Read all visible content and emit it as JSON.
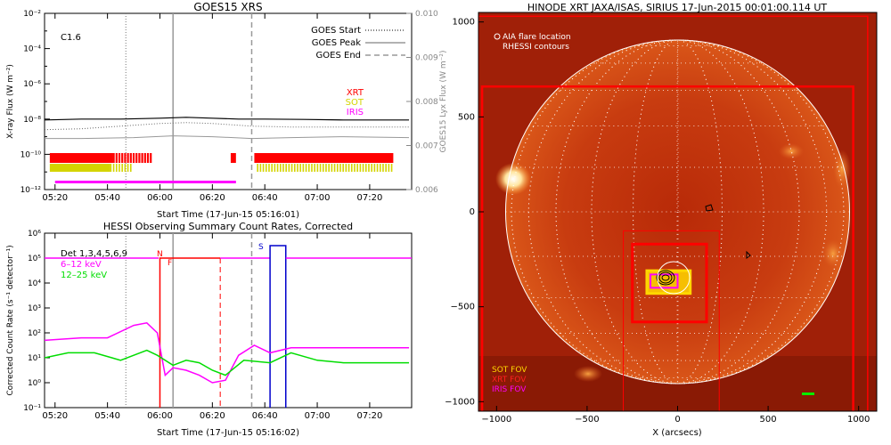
{
  "chart_data": [
    {
      "type": "line",
      "title": "GOES15 XRS",
      "xlabel": "Start Time (17-Jun-15 05:16:01)",
      "ylabel": "X-ray Flux (W m⁻²)",
      "y2label": "GOES15 Lyx Flux (W m⁻²)",
      "x_ticks": [
        "05:20",
        "05:40",
        "06:00",
        "06:20",
        "06:40",
        "07:00",
        "07:20"
      ],
      "y_ticks": [
        "10⁻¹²",
        "10⁻¹⁰",
        "10⁻⁸",
        "10⁻⁶",
        "10⁻⁴",
        "10⁻²"
      ],
      "y2_ticks": [
        "0.006",
        "0.007",
        "0.008",
        "0.009",
        "0.010"
      ],
      "ylim": [
        "1e-12",
        "1e-2"
      ],
      "y2lim": [
        0.006,
        0.01
      ],
      "scale": "log",
      "flare_class": "C1.6",
      "legend": [
        {
          "label": "GOES Start",
          "style": "dotted"
        },
        {
          "label": "GOES Peak",
          "style": "solid"
        },
        {
          "label": "GOES End",
          "style": "dashed"
        }
      ],
      "markers": {
        "start": "05:47",
        "peak": "06:05",
        "end": "06:35"
      },
      "series": [
        {
          "name": "1-8 Å (log10 flux)",
          "color": "#000000",
          "x": [
            "05:16",
            "05:30",
            "05:45",
            "06:00",
            "06:10",
            "06:20",
            "06:30",
            "06:40",
            "06:55",
            "07:10",
            "07:25",
            "07:35"
          ],
          "values": [
            -8.05,
            -8.0,
            -8.0,
            -7.95,
            -7.9,
            -7.95,
            -8.0,
            -8.0,
            -8.02,
            -8.05,
            -8.05,
            -8.05
          ]
        },
        {
          "name": "Lyman-alpha (dotted, log10 flux)",
          "color": "#666666",
          "x": [
            "05:16",
            "05:30",
            "05:45",
            "06:00",
            "06:10",
            "06:20",
            "06:35",
            "06:50",
            "07:05",
            "07:20",
            "07:35"
          ],
          "values": [
            -8.6,
            -8.55,
            -8.4,
            -8.25,
            -8.2,
            -8.25,
            -8.4,
            -8.45,
            -8.45,
            -8.45,
            -8.45
          ]
        },
        {
          "name": "0.5-4 Å (log10 flux)",
          "color": "#999999",
          "x": [
            "05:16",
            "05:30",
            "05:50",
            "06:05",
            "06:20",
            "06:35",
            "06:50",
            "07:10",
            "07:35"
          ],
          "values": [
            -9.1,
            -9.1,
            -9.05,
            -8.95,
            -9.0,
            -9.1,
            -9.05,
            -9.0,
            -9.05
          ]
        }
      ],
      "coverage_legend": [
        {
          "label": "XRT",
          "color": "#ff0000"
        },
        {
          "label": "SOT",
          "color": "#d4d400"
        },
        {
          "label": "IRIS",
          "color": "#ff00ff"
        }
      ],
      "coverage": [
        {
          "name": "XRT",
          "color": "#ff0000",
          "intervals": [
            [
              "05:18",
              "05:42"
            ],
            [
              "05:42",
              "05:57"
            ],
            [
              "06:27",
              "06:29"
            ],
            [
              "06:36",
              "07:29"
            ]
          ]
        },
        {
          "name": "SOT",
          "color": "#d4d400",
          "intervals": [
            [
              "05:18",
              "05:41"
            ],
            [
              "05:41",
              "05:49"
            ],
            [
              "06:37",
              "07:29"
            ]
          ]
        },
        {
          "name": "IRIS",
          "color": "#ff00ff",
          "intervals": [
            [
              "05:20",
              "06:29"
            ]
          ]
        }
      ]
    },
    {
      "type": "line",
      "title": "HESSI Observing Summary Count Rates, Corrected",
      "xlabel": "Start Time (17-Jun-15 05:16:02)",
      "ylabel": "Corrected Count Rate (s⁻¹ detector⁻¹)",
      "x_ticks": [
        "05:20",
        "05:40",
        "06:00",
        "06:20",
        "06:40",
        "07:00",
        "07:20"
      ],
      "y_ticks": [
        "10⁻¹",
        "10⁰",
        "10¹",
        "10²",
        "10³",
        "10⁴",
        "10⁵",
        "10⁶"
      ],
      "ylim": [
        "1e-1",
        "1e6"
      ],
      "scale": "log",
      "detectors": "Det 1,3,4,5,6,9",
      "annotations": {
        "night": "N",
        "flare": "F",
        "saa": "S"
      },
      "markers": {
        "start": "05:47",
        "peak": "06:05",
        "end": "06:35"
      },
      "series": [
        {
          "name": "6-12 keV (log10 rate)",
          "color": "#ff00ff",
          "x": [
            "05:16",
            "05:30",
            "05:40",
            "05:50",
            "05:55",
            "05:59",
            "06:02",
            "06:05",
            "06:10",
            "06:15",
            "06:20",
            "06:25",
            "06:30",
            "06:36",
            "06:42",
            "06:50",
            "07:00",
            "07:10",
            "07:20",
            "07:35"
          ],
          "values": [
            1.7,
            1.8,
            1.8,
            2.3,
            2.4,
            2.0,
            0.3,
            0.6,
            0.5,
            0.3,
            0.0,
            0.1,
            1.1,
            1.5,
            1.2,
            1.4,
            1.4,
            1.4,
            1.4,
            1.4
          ]
        },
        {
          "name": "12-25 keV (log10 rate)",
          "color": "#00dd00",
          "x": [
            "05:16",
            "05:25",
            "05:35",
            "05:45",
            "05:55",
            "05:59",
            "06:05",
            "06:10",
            "06:15",
            "06:20",
            "06:25",
            "06:32",
            "06:42",
            "06:50",
            "07:00",
            "07:10",
            "07:20",
            "07:35"
          ],
          "values": [
            1.0,
            1.2,
            1.2,
            0.9,
            1.3,
            1.1,
            0.7,
            0.9,
            0.8,
            0.5,
            0.3,
            0.9,
            0.8,
            1.2,
            0.9,
            0.8,
            0.8,
            0.8
          ]
        },
        {
          "name": "attenuator / flags",
          "color": "#ff0000",
          "x": [
            "05:16",
            "06:00",
            "06:00",
            "06:23",
            "06:23"
          ],
          "values": [
            5.0,
            5.0,
            5.0,
            5.0,
            5.0
          ]
        }
      ],
      "legend": [
        {
          "label": "Det 1,3,4,5,6,9",
          "color": "#000000"
        },
        {
          "label": "6–12 keV",
          "color": "#ff00ff"
        },
        {
          "label": "12–25 keV",
          "color": "#00dd00"
        }
      ]
    },
    {
      "type": "heatmap",
      "title": "HINODE XRT JAXA/ISAS, SIRIUS 17-Jun-2015 00:01:00.114 UT",
      "xlabel": "X (arcsecs)",
      "ylabel": "",
      "x_ticks": [
        "−1000",
        "−500",
        "0",
        "500",
        "1000"
      ],
      "y_ticks": [
        "−1000",
        "−500",
        "0",
        "500",
        "1000"
      ],
      "xlim": [
        -1100,
        1100
      ],
      "ylim": [
        -1050,
        1050
      ],
      "legend_top": [
        {
          "label": "AIA flare location",
          "marker": "circle"
        },
        {
          "label": "RHESSI contours",
          "marker": "contour"
        }
      ],
      "legend_bottom": [
        {
          "label": "SOT FOV",
          "color": "#ffd700"
        },
        {
          "label": "XRT FOV",
          "color": "#ff0000"
        },
        {
          "label": "IRIS FOV",
          "color": "#ff00ff"
        }
      ],
      "solar_radius_arcsec": 950,
      "flare_location": [
        -80,
        -370
      ],
      "fovs": [
        {
          "name": "XRT FOV",
          "color": "#ff0000",
          "xrange": [
            -1100,
            1050
          ],
          "yrange": [
            -1090,
            1030
          ]
        },
        {
          "name": "XRT FOV",
          "color": "#ff0000",
          "xrange": [
            -1080,
            970
          ],
          "yrange": [
            -1080,
            660
          ]
        },
        {
          "name": "XRT FOV",
          "color": "#ff0000",
          "xrange": [
            -300,
            230
          ],
          "yrange": [
            -1070,
            -100
          ]
        },
        {
          "name": "XRT FOV",
          "color": "#ff0000",
          "xrange": [
            -250,
            160
          ],
          "yrange": [
            -580,
            -170
          ]
        },
        {
          "name": "SOT FOV",
          "color": "#ffd700",
          "xrange": [
            -170,
            70
          ],
          "yrange": [
            -430,
            -310
          ]
        },
        {
          "name": "IRIS FOV",
          "color": "#ff00ff",
          "xrange": [
            -150,
            0
          ],
          "yrange": [
            -400,
            -330
          ]
        }
      ]
    }
  ]
}
